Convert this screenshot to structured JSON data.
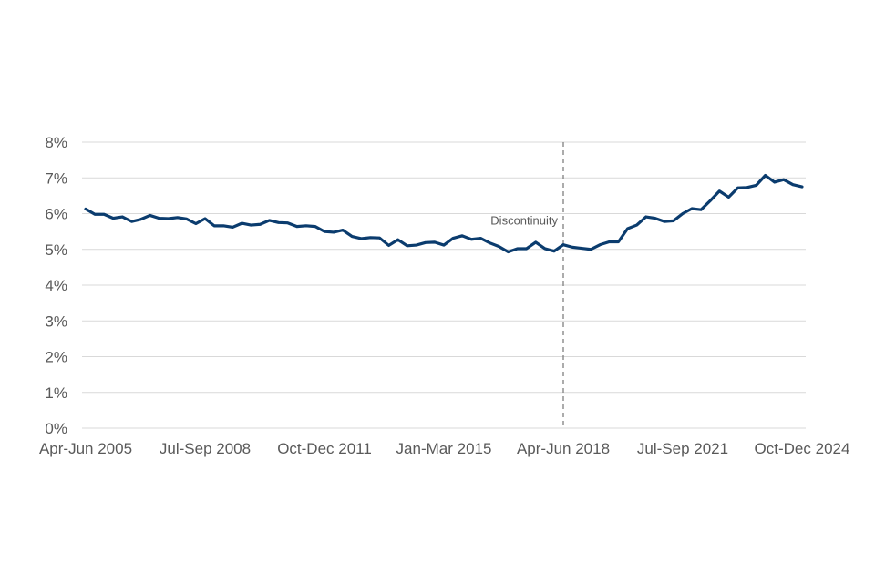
{
  "chart_data": {
    "type": "line",
    "title": "",
    "xlabel": "",
    "ylabel": "",
    "ylim": [
      0,
      8
    ],
    "y_ticks": [
      "0%",
      "1%",
      "2%",
      "3%",
      "4%",
      "5%",
      "6%",
      "7%",
      "8%"
    ],
    "x_tick_labels": [
      "Apr-Jun 2005",
      "Jul-Sep 2008",
      "Oct-Dec 2011",
      "Jan-Mar 2015",
      "Apr-Jun 2018",
      "Jul-Sep 2021",
      "Oct-Dec 2024"
    ],
    "grid": true,
    "legend": "none",
    "line_color": "#0b3c6e",
    "annotation": {
      "label": "Discontinuity",
      "x_category": "Apr-Jun 2018"
    },
    "x": [
      "Apr-Jun 2005",
      "Jul-Sep 2005",
      "Oct-Dec 2005",
      "Jan-Mar 2006",
      "Apr-Jun 2006",
      "Jul-Sep 2006",
      "Oct-Dec 2006",
      "Jan-Mar 2007",
      "Apr-Jun 2007",
      "Jul-Sep 2007",
      "Oct-Dec 2007",
      "Jan-Mar 2008",
      "Apr-Jun 2008",
      "Jul-Sep 2008",
      "Oct-Dec 2008",
      "Jan-Mar 2009",
      "Apr-Jun 2009",
      "Jul-Sep 2009",
      "Oct-Dec 2009",
      "Jan-Mar 2010",
      "Apr-Jun 2010",
      "Jul-Sep 2010",
      "Oct-Dec 2010",
      "Jan-Mar 2011",
      "Apr-Jun 2011",
      "Jul-Sep 2011",
      "Oct-Dec 2011",
      "Jan-Mar 2012",
      "Apr-Jun 2012",
      "Jul-Sep 2012",
      "Oct-Dec 2012",
      "Jan-Mar 2013",
      "Apr-Jun 2013",
      "Jul-Sep 2013",
      "Oct-Dec 2013",
      "Jan-Mar 2014",
      "Apr-Jun 2014",
      "Jul-Sep 2014",
      "Oct-Dec 2014",
      "Jan-Mar 2015",
      "Apr-Jun 2015",
      "Jul-Sep 2015",
      "Oct-Dec 2015",
      "Jan-Mar 2016",
      "Apr-Jun 2016",
      "Jul-Sep 2016",
      "Oct-Dec 2016",
      "Jan-Mar 2017",
      "Apr-Jun 2017",
      "Jul-Sep 2017",
      "Oct-Dec 2017",
      "Jan-Mar 2018",
      "Apr-Jun 2018",
      "Jul-Sep 2018",
      "Oct-Dec 2018",
      "Jan-Mar 2019",
      "Apr-Jun 2019",
      "Jul-Sep 2019",
      "Oct-Dec 2019",
      "Jan-Mar 2020",
      "Apr-Jun 2020",
      "Jul-Sep 2020",
      "Oct-Dec 2020",
      "Jan-Mar 2021",
      "Apr-Jun 2021",
      "Jul-Sep 2021",
      "Oct-Dec 2021",
      "Jan-Mar 2022",
      "Apr-Jun 2022",
      "Jul-Sep 2022",
      "Oct-Dec 2022",
      "Jan-Mar 2023",
      "Apr-Jun 2023",
      "Jul-Sep 2023",
      "Oct-Dec 2023",
      "Jan-Mar 2024",
      "Apr-Jun 2024",
      "Jul-Sep 2024",
      "Oct-Dec 2024"
    ],
    "series": [
      {
        "values": [
          6.13,
          5.98,
          5.98,
          5.87,
          5.91,
          5.78,
          5.84,
          5.95,
          5.87,
          5.86,
          5.89,
          5.85,
          5.72,
          5.86,
          5.66,
          5.66,
          5.62,
          5.73,
          5.68,
          5.7,
          5.81,
          5.75,
          5.74,
          5.64,
          5.66,
          5.64,
          5.5,
          5.48,
          5.54,
          5.36,
          5.3,
          5.33,
          5.32,
          5.11,
          5.27,
          5.1,
          5.12,
          5.19,
          5.2,
          5.12,
          5.31,
          5.38,
          5.28,
          5.31,
          5.18,
          5.08,
          4.93,
          5.02,
          5.02,
          5.2,
          5.02,
          4.95,
          5.13,
          5.06,
          5.03,
          5.0,
          5.13,
          5.21,
          5.21,
          5.58,
          5.68,
          5.91,
          5.87,
          5.78,
          5.8,
          6.0,
          6.14,
          6.11,
          6.36,
          6.63,
          6.46,
          6.72,
          6.73,
          6.79,
          7.07,
          6.88,
          6.95,
          6.81,
          6.75
        ]
      }
    ]
  }
}
